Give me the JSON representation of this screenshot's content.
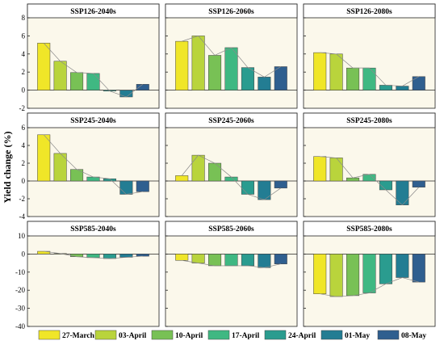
{
  "figure": {
    "ylabel": "Yield change (%)"
  },
  "colors": [
    "#f0e628",
    "#b9d43c",
    "#78c155",
    "#3fb882",
    "#2a9c8f",
    "#237d93",
    "#2f5f8f"
  ],
  "legend": [
    "27-March",
    "03-April",
    "10-April",
    "17-April",
    "24-April",
    "01-May",
    "08-May"
  ],
  "chart_data": [
    {
      "type": "bar",
      "title": "SSP126-2040s",
      "categories": [
        "27-March",
        "03-April",
        "10-April",
        "17-April",
        "24-April",
        "01-May",
        "08-May"
      ],
      "values": [
        5.2,
        3.2,
        1.95,
        1.85,
        -0.1,
        -0.75,
        0.65
      ],
      "ylim": [
        -2,
        8
      ],
      "yticks": [
        -2,
        0,
        2,
        4,
        6,
        8
      ],
      "yticklabels": [
        "-2",
        "0",
        "2",
        "4",
        "6",
        "8"
      ]
    },
    {
      "type": "bar",
      "title": "SSP126-2060s",
      "categories": [
        "27-March",
        "03-April",
        "10-April",
        "17-April",
        "24-April",
        "01-May",
        "08-May"
      ],
      "values": [
        5.4,
        6.0,
        3.85,
        4.7,
        2.5,
        1.45,
        2.6
      ],
      "ylim": [
        -2,
        8
      ],
      "yticks": [
        -2,
        0,
        2,
        4,
        6,
        8
      ],
      "yticklabels": [
        "",
        "",
        "",
        "",
        "",
        ""
      ]
    },
    {
      "type": "bar",
      "title": "SSP126-2080s",
      "categories": [
        "27-March",
        "03-April",
        "10-April",
        "17-April",
        "24-April",
        "01-May",
        "08-May"
      ],
      "values": [
        4.15,
        4.0,
        2.45,
        2.45,
        0.55,
        0.45,
        1.5
      ],
      "ylim": [
        -2,
        8
      ],
      "yticks": [
        -2,
        0,
        2,
        4,
        6,
        8
      ],
      "yticklabels": [
        "",
        "",
        "",
        "",
        "",
        ""
      ]
    },
    {
      "type": "bar",
      "title": "SSP245-2040s",
      "categories": [
        "27-March",
        "03-April",
        "10-April",
        "17-April",
        "24-April",
        "01-May",
        "08-May"
      ],
      "values": [
        5.2,
        3.1,
        1.3,
        0.45,
        0.25,
        -1.5,
        -1.2
      ],
      "ylim": [
        -4,
        6
      ],
      "yticks": [
        -4,
        -2,
        0,
        2,
        4,
        6
      ],
      "yticklabels": [
        "-4",
        "-2",
        "0",
        "2",
        "4",
        "6"
      ]
    },
    {
      "type": "bar",
      "title": "SSP245-2060s",
      "categories": [
        "27-March",
        "03-April",
        "10-April",
        "17-April",
        "24-April",
        "01-May",
        "08-May"
      ],
      "values": [
        0.6,
        2.9,
        2.0,
        0.45,
        -1.5,
        -2.1,
        -0.8
      ],
      "ylim": [
        -4,
        6
      ],
      "yticks": [
        -4,
        -2,
        0,
        2,
        4,
        6
      ],
      "yticklabels": [
        "",
        "",
        "",
        "",
        "",
        ""
      ]
    },
    {
      "type": "bar",
      "title": "SSP245-2080s",
      "categories": [
        "27-March",
        "03-April",
        "10-April",
        "17-April",
        "24-April",
        "01-May",
        "08-May"
      ],
      "values": [
        2.75,
        2.6,
        0.35,
        0.75,
        -1.0,
        -2.7,
        -0.7
      ],
      "ylim": [
        -4,
        6
      ],
      "yticks": [
        -4,
        -2,
        0,
        2,
        4,
        6
      ],
      "yticklabels": [
        "",
        "",
        "",
        "",
        "",
        ""
      ]
    },
    {
      "type": "bar",
      "title": "SSP585-2040s",
      "categories": [
        "27-March",
        "03-April",
        "10-April",
        "17-April",
        "24-April",
        "01-May",
        "08-May"
      ],
      "values": [
        1.5,
        0.3,
        -1.5,
        -2.0,
        -2.5,
        -1.8,
        -1.2
      ],
      "ylim": [
        -40,
        10
      ],
      "yticks": [
        -40,
        -30,
        -20,
        -10,
        0,
        10
      ],
      "yticklabels": [
        "-40",
        "-30",
        "-20",
        "-10",
        "0",
        "10"
      ]
    },
    {
      "type": "bar",
      "title": "SSP585-2060s",
      "categories": [
        "27-March",
        "03-April",
        "10-April",
        "17-April",
        "24-April",
        "01-May",
        "08-May"
      ],
      "values": [
        -3.5,
        -5.0,
        -6.5,
        -6.5,
        -6.5,
        -7.5,
        -5.5
      ],
      "ylim": [
        -40,
        10
      ],
      "yticks": [
        -40,
        -30,
        -20,
        -10,
        0,
        10
      ],
      "yticklabels": [
        "",
        "",
        "",
        "",
        "",
        ""
      ]
    },
    {
      "type": "bar",
      "title": "SSP585-2080s",
      "categories": [
        "27-March",
        "03-April",
        "10-April",
        "17-April",
        "24-April",
        "01-May",
        "08-May"
      ],
      "values": [
        -22.0,
        -23.5,
        -23.0,
        -21.5,
        -16.5,
        -13.0,
        -15.5
      ],
      "ylim": [
        -40,
        10
      ],
      "yticks": [
        -40,
        -30,
        -20,
        -10,
        0,
        10
      ],
      "yticklabels": [
        "",
        "",
        "",
        "",
        "",
        ""
      ]
    }
  ]
}
